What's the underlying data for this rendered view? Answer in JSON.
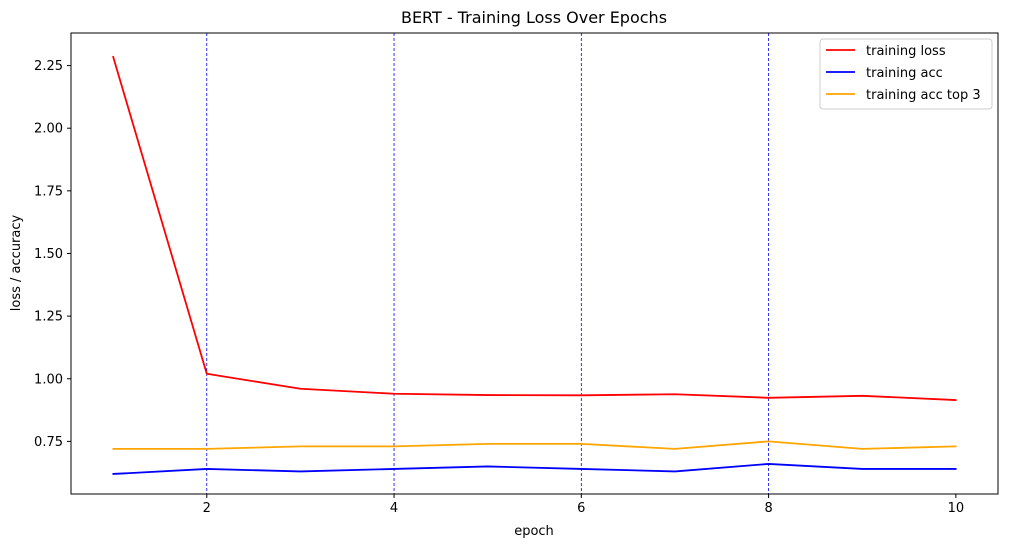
{
  "chart_data": {
    "type": "line",
    "title": "BERT - Training Loss Over Epochs",
    "xlabel": "epoch",
    "ylabel": "loss / accuracy",
    "x": [
      1,
      2,
      3,
      4,
      5,
      6,
      7,
      8,
      9,
      10
    ],
    "xlim": [
      0.55,
      10.45
    ],
    "ylim": [
      0.54,
      2.38
    ],
    "xticks": [
      2,
      4,
      6,
      8,
      10
    ],
    "xtick_labels": [
      "2",
      "4",
      "6",
      "8",
      "10"
    ],
    "yticks": [
      0.75,
      1.0,
      1.25,
      1.5,
      1.75,
      2.0,
      2.25
    ],
    "ytick_labels": [
      "0.75",
      "1.00",
      "1.25",
      "1.50",
      "1.75",
      "2.00",
      "2.25"
    ],
    "vlines": {
      "x": [
        2,
        4,
        6,
        8
      ],
      "color": "#0000ff",
      "style": "dashed"
    },
    "grid": false,
    "legend_position": "top-right",
    "series": [
      {
        "name": "training loss",
        "color": "#ff0000",
        "values": [
          2.285,
          1.02,
          0.96,
          0.94,
          0.935,
          0.934,
          0.938,
          0.924,
          0.932,
          0.915
        ]
      },
      {
        "name": "training acc",
        "color": "#0000ff",
        "values": [
          0.62,
          0.64,
          0.63,
          0.64,
          0.65,
          0.64,
          0.63,
          0.66,
          0.64,
          0.64
        ]
      },
      {
        "name": "training acc top 3",
        "color": "#ffa500",
        "values": [
          0.72,
          0.72,
          0.73,
          0.73,
          0.74,
          0.74,
          0.72,
          0.75,
          0.72,
          0.73
        ]
      }
    ]
  }
}
